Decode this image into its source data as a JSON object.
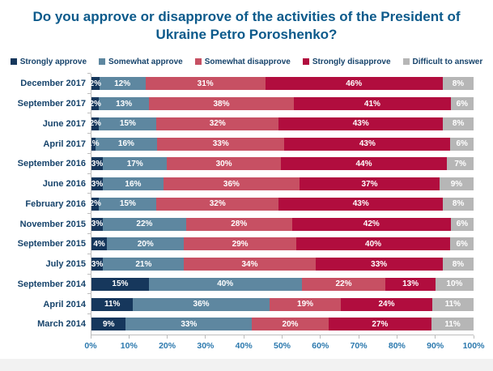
{
  "title": "Do you approve or disapprove of the activities of the President of Ukraine Petro Poroshenko?",
  "chart_data": {
    "type": "bar",
    "stacked": true,
    "orientation": "horizontal",
    "title": "Do you approve or disapprove of the activities of the President of Ukraine Petro Poroshenko?",
    "legend_position": "top",
    "value_suffix": "%",
    "xlim": [
      0,
      100
    ],
    "x_ticks": [
      "0%",
      "10%",
      "20%",
      "30%",
      "40%",
      "50%",
      "60%",
      "70%",
      "80%",
      "90%",
      "100%"
    ],
    "categories": [
      "December 2017",
      "September 2017",
      "June 2017",
      "April 2017",
      "September 2016",
      "June 2016",
      "February 2016",
      "November 2015",
      "September 2015",
      "July 2015",
      "September 2014",
      "April 2014",
      "March 2014"
    ],
    "series": [
      {
        "name": "Strongly approve",
        "color": "#16375c",
        "values": [
          2,
          2,
          2,
          1,
          3,
          3,
          2,
          3,
          4,
          3,
          15,
          11,
          9
        ]
      },
      {
        "name": "Somewhat approve",
        "color": "#5e87a0",
        "values": [
          12,
          13,
          15,
          16,
          17,
          16,
          15,
          22,
          20,
          21,
          40,
          36,
          33
        ]
      },
      {
        "name": "Somewhat disapprove",
        "color": "#c75063",
        "values": [
          31,
          38,
          32,
          33,
          30,
          36,
          32,
          28,
          29,
          34,
          22,
          19,
          20
        ]
      },
      {
        "name": "Strongly disapprove",
        "color": "#b10d3e",
        "values": [
          46,
          41,
          43,
          43,
          44,
          37,
          43,
          42,
          40,
          33,
          13,
          24,
          27
        ]
      },
      {
        "name": "Difficult to answer",
        "color": "#b6b6b6",
        "values": [
          8,
          6,
          8,
          6,
          7,
          9,
          8,
          6,
          6,
          8,
          10,
          11,
          11
        ]
      }
    ]
  },
  "colors": {
    "title_text": "#0c5a8b",
    "label_text": "#16436b",
    "axis_label_text": "#2c79ae",
    "axis_line": "#bdbdbd",
    "footer_strip": "#f2f2f2"
  }
}
